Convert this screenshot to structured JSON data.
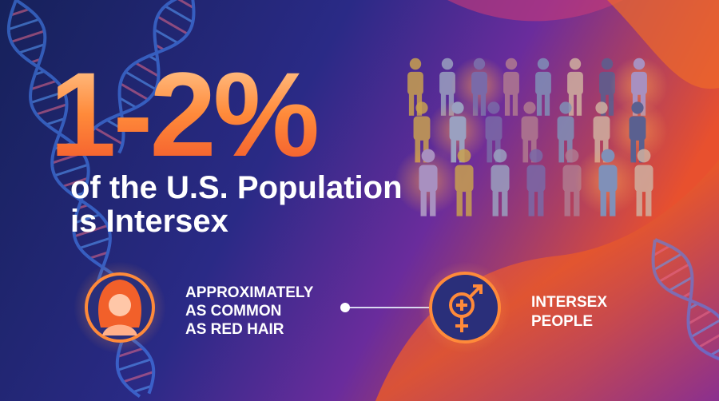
{
  "headline": {
    "stat": "1-2%",
    "lines": [
      "of the U.S. Population",
      "is Intersex"
    ]
  },
  "comparison": {
    "left": {
      "lines": [
        "APPROXIMATELY",
        "AS COMMON",
        "AS RED HAIR"
      ]
    },
    "right": {
      "lines": [
        "INTERSEX",
        "PEOPLE"
      ]
    }
  }
}
